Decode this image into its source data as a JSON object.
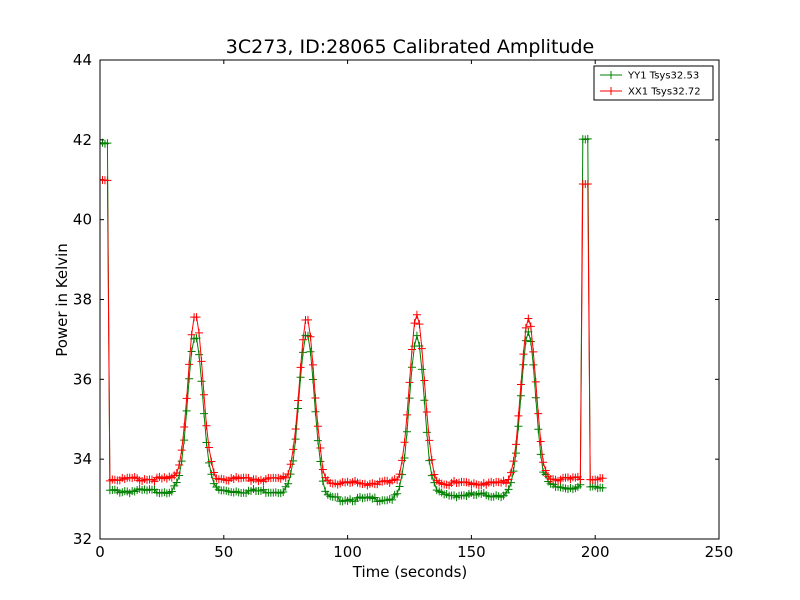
{
  "chart_data": {
    "type": "line",
    "title": "3C273, ID:28065 Calibrated Amplitude",
    "xlabel": "Time (seconds)",
    "ylabel": "Power in Kelvin",
    "xlim": [
      0,
      250
    ],
    "ylim": [
      32,
      44
    ],
    "xticks": [
      0,
      50,
      100,
      150,
      200,
      250
    ],
    "yticks": [
      32,
      34,
      36,
      38,
      40,
      42,
      44
    ],
    "grid": false,
    "legend_position": "top-right",
    "marker": "+",
    "sample_interval": 1,
    "series": [
      {
        "name": "YY1 Tsys32.53",
        "color": "#008000",
        "x_range": [
          0,
          203
        ],
        "segments": [
          {
            "from": 0,
            "to": 4,
            "level": 41.9
          },
          {
            "from": 4,
            "to": 195,
            "baseline": [
              {
                "from": 4,
                "to": 31,
                "level": 33.2
              },
              {
                "from": 45,
                "to": 77,
                "level": 33.2
              },
              {
                "from": 90,
                "to": 121,
                "level": 33.0
              },
              {
                "from": 135,
                "to": 166,
                "level": 33.1
              },
              {
                "from": 180,
                "to": 195,
                "level": 33.3
              }
            ]
          },
          {
            "from": 195,
            "to": 198,
            "level": 42.0
          },
          {
            "from": 198,
            "to": 203,
            "level": 33.3
          }
        ],
        "peaks": [
          {
            "t": 38.5,
            "peak": 37.1
          },
          {
            "t": 83.5,
            "peak": 37.2
          },
          {
            "t": 128.0,
            "peak": 37.1
          },
          {
            "t": 173.0,
            "peak": 37.2
          }
        ]
      },
      {
        "name": "XX1 Tsys32.72",
        "color": "#ff0000",
        "x_range": [
          0,
          203
        ],
        "segments": [
          {
            "from": 0,
            "to": 4,
            "level": 41.0
          },
          {
            "from": 4,
            "to": 195,
            "baseline": [
              {
                "from": 4,
                "to": 31,
                "level": 33.5
              },
              {
                "from": 45,
                "to": 77,
                "level": 33.5
              },
              {
                "from": 90,
                "to": 121,
                "level": 33.4
              },
              {
                "from": 135,
                "to": 166,
                "level": 33.4
              },
              {
                "from": 180,
                "to": 195,
                "level": 33.5
              }
            ]
          },
          {
            "from": 195,
            "to": 198,
            "level": 40.9
          },
          {
            "from": 198,
            "to": 203,
            "level": 33.5
          }
        ],
        "peaks": [
          {
            "t": 38.5,
            "peak": 37.6
          },
          {
            "t": 83.5,
            "peak": 37.5
          },
          {
            "t": 128.0,
            "peak": 37.6
          },
          {
            "t": 173.0,
            "peak": 37.5
          }
        ]
      }
    ]
  }
}
